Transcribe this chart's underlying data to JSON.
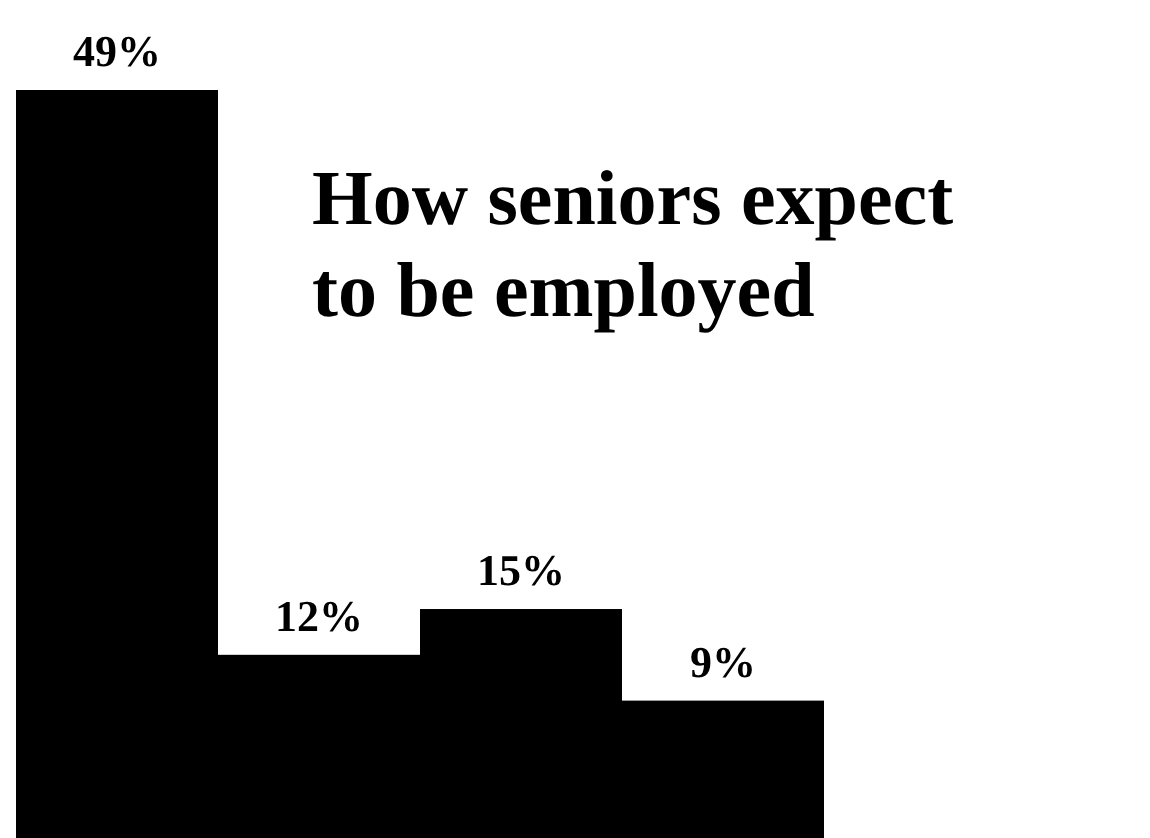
{
  "chart_data": {
    "type": "bar",
    "title": "How seniors expect to be employed",
    "categories": [
      null,
      null,
      null,
      null
    ],
    "values": [
      49,
      12,
      15,
      9
    ],
    "color": "#000000",
    "value_labels": [
      "49%",
      "12%",
      "15%",
      "9%"
    ]
  }
}
